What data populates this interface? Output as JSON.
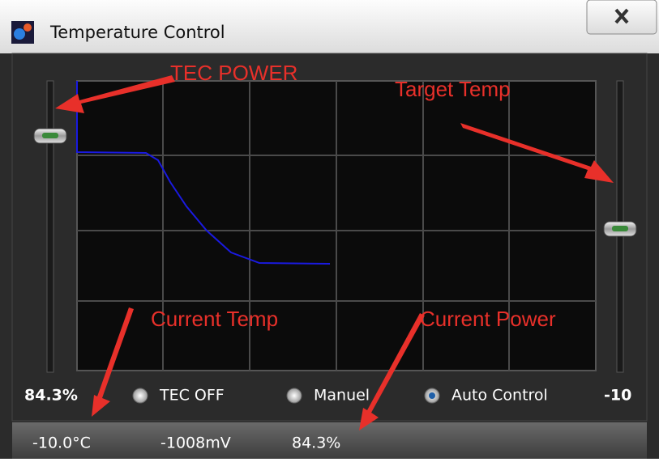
{
  "window": {
    "title": "Temperature Control"
  },
  "annotations": [
    "TEC POWER",
    "Target Temp",
    "Current Temp",
    "Current Power"
  ],
  "controls": {
    "power_label": "84.3%",
    "target_label": "-10",
    "modes": [
      {
        "label": "TEC OFF",
        "selected": false
      },
      {
        "label": "Manuel",
        "selected": false
      },
      {
        "label": "Auto Control",
        "selected": true
      }
    ]
  },
  "status": [
    "-10.0°C",
    "-1008mV",
    "84.3%"
  ]
}
